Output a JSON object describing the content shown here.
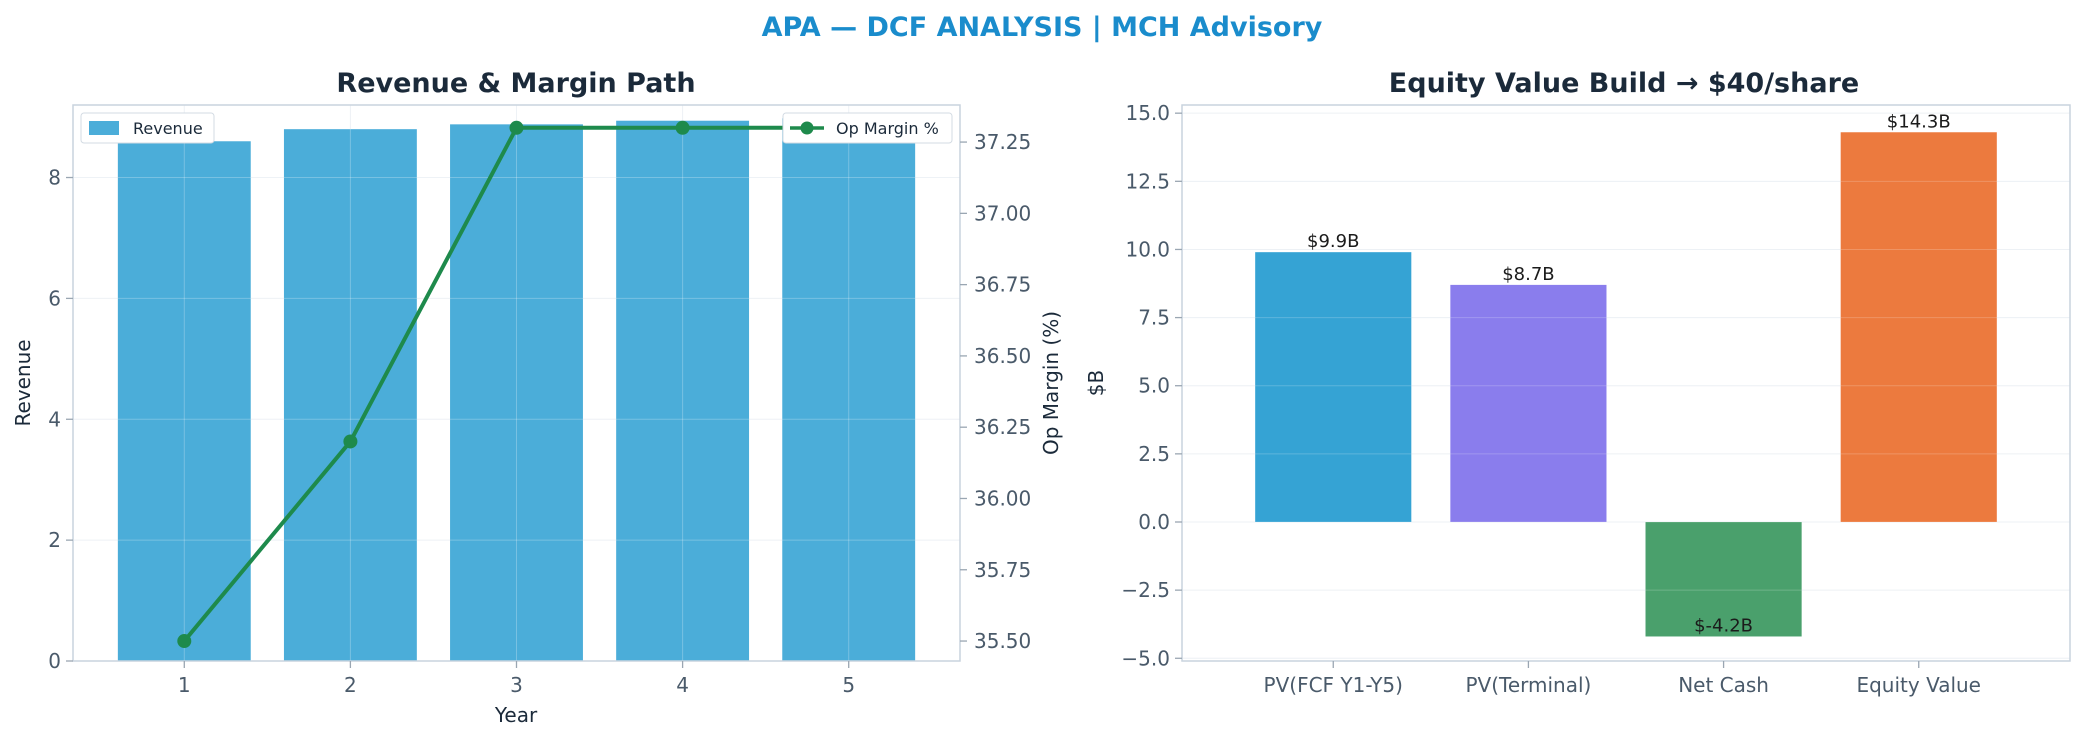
{
  "figure": {
    "suptitle": "APA — DCF ANALYSIS | MCH Advisory",
    "suptitle_color": "#1a8ccc"
  },
  "chart_data": [
    {
      "type": "bar",
      "title": "Revenue & Margin Path",
      "xlabel": "Year",
      "ylabel": "Revenue",
      "y2label": "Op Margin (%)",
      "categories": [
        "1",
        "2",
        "3",
        "4",
        "5"
      ],
      "series": [
        {
          "name": "Revenue",
          "type": "bar",
          "axis": "left",
          "color": "#4badd9",
          "values": [
            8.6,
            8.8,
            8.88,
            8.94,
            8.98
          ]
        },
        {
          "name": "Op Margin %",
          "type": "line",
          "axis": "right",
          "color": "#1e8a4c",
          "values": [
            35.5,
            36.2,
            37.3,
            37.3,
            37.3
          ]
        }
      ],
      "ylim": [
        0,
        9.2
      ],
      "yticks": [
        0,
        2,
        4,
        6,
        8
      ],
      "y2lim": [
        35.43,
        37.38
      ],
      "y2ticks": [
        35.5,
        35.75,
        36.0,
        36.25,
        36.5,
        36.75,
        37.0,
        37.25
      ],
      "grid": true,
      "legend": {
        "left": "top-left",
        "right": "top-right"
      }
    },
    {
      "type": "bar",
      "title": "Equity Value Build → $40/share",
      "xlabel": "",
      "ylabel": "$B",
      "categories": [
        "PV(FCF Y1-Y5)",
        "PV(Terminal)",
        "Net Cash",
        "Equity Value"
      ],
      "values": [
        9.9,
        8.7,
        -4.2,
        14.3
      ],
      "data_labels": [
        "$9.9B",
        "$8.7B",
        "$-4.2B",
        "$14.3B"
      ],
      "colors": [
        "#35a3d4",
        "#8a7ded",
        "#4aa06c",
        "#ec7a3e"
      ],
      "ylim": [
        -5.1,
        15.3
      ],
      "yticks": [
        -5.0,
        -2.5,
        0.0,
        2.5,
        5.0,
        7.5,
        10.0,
        12.5,
        15.0
      ],
      "grid": true
    }
  ]
}
